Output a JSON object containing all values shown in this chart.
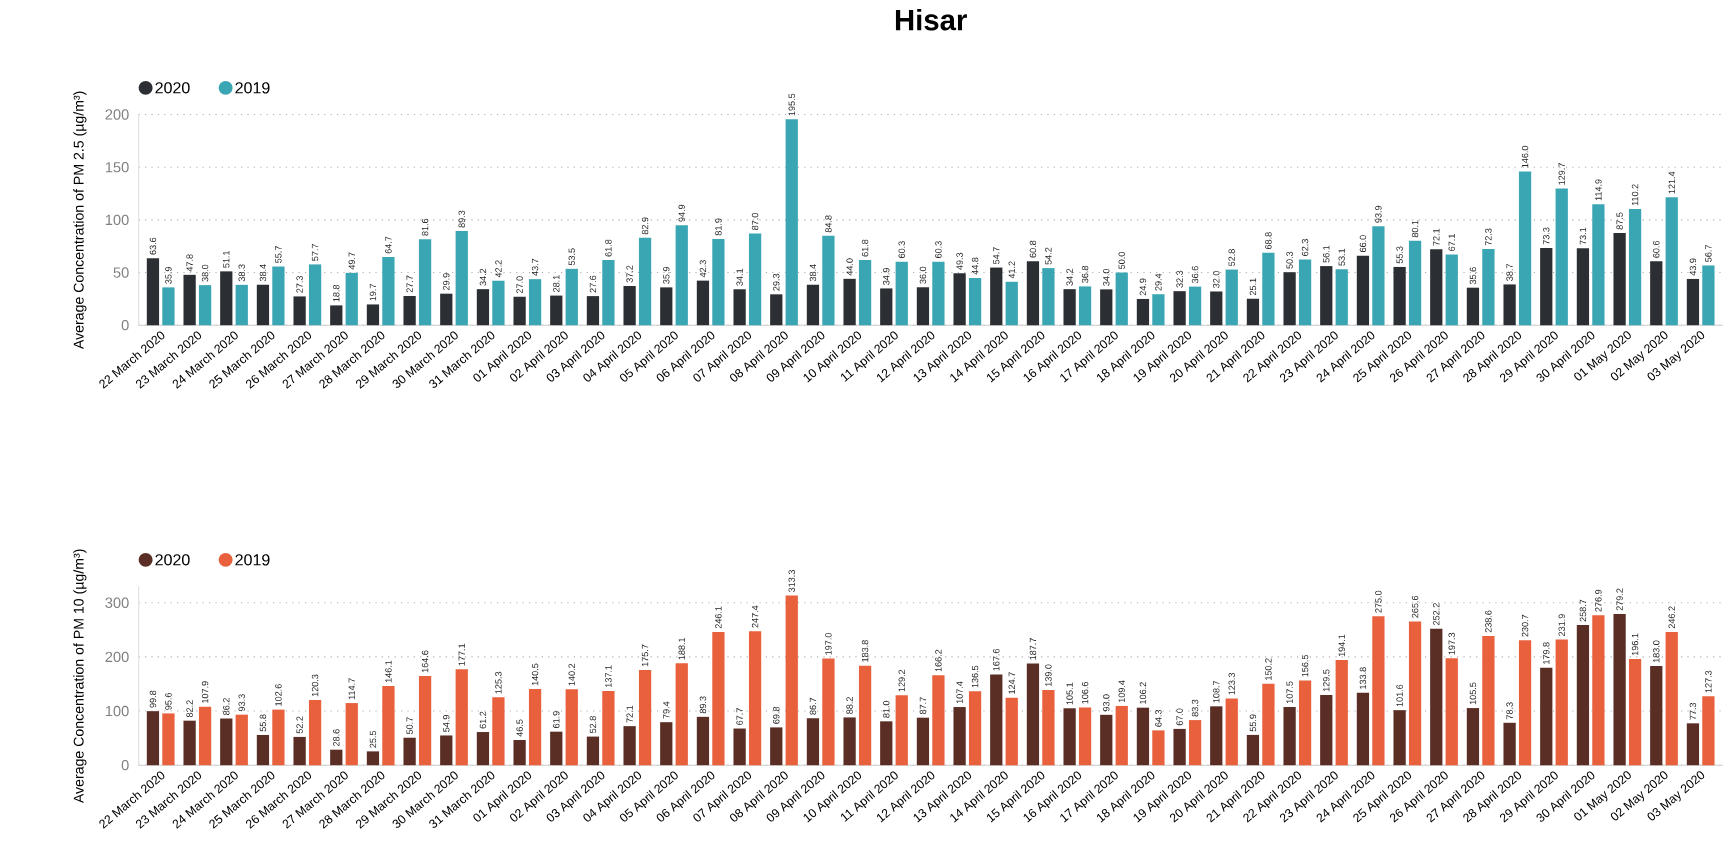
{
  "chart_data": [
    {
      "type": "bar",
      "title": "Hisar",
      "ylabel": "Average Concentration of PM 2.5 (µg/m³)",
      "categories": [
        "22 March 2020",
        "23 March 2020",
        "24 March 2020",
        "25 March 2020",
        "26 March 2020",
        "27 March 2020",
        "28 March 2020",
        "29 March 2020",
        "30 March 2020",
        "31 March 2020",
        "01 April 2020",
        "02 April 2020",
        "03 April 2020",
        "04 April 2020",
        "05 April 2020",
        "06 April 2020",
        "07 April 2020",
        "08 April 2020",
        "09 April 2020",
        "10 April 2020",
        "11 April 2020",
        "12 April 2020",
        "13 April 2020",
        "14 April 2020",
        "15 April 2020",
        "16 April 2020",
        "17 April 2020",
        "18 April 2020",
        "19 April 2020",
        "20 April 2020",
        "21 April 2020",
        "22 April 2020",
        "23 April 2020",
        "24 April 2020",
        "25 April 2020",
        "26 April 2020",
        "27 April 2020",
        "28 April 2020",
        "29 April 2020",
        "30 April 2020",
        "01 May 2020",
        "02 May 2020",
        "03 May 2020"
      ],
      "series": [
        {
          "name": "2020",
          "color": "#2b2f33",
          "values": [
            63.6,
            47.8,
            51.1,
            38.4,
            27.3,
            18.8,
            19.7,
            27.7,
            29.9,
            34.2,
            27.0,
            28.1,
            27.6,
            37.2,
            35.9,
            42.3,
            34.1,
            29.3,
            38.4,
            44.0,
            34.9,
            36.0,
            49.3,
            54.7,
            60.8,
            34.2,
            34.0,
            24.9,
            32.3,
            32.0,
            25.1,
            50.3,
            56.1,
            66.0,
            55.3,
            72.1,
            35.6,
            38.7,
            73.3,
            73.1,
            87.5,
            60.6,
            43.9
          ],
          "value_labels": [
            "63.6",
            "47.8",
            "51.1",
            "38.4",
            "27.3",
            "18.8",
            "19.7",
            "27.7",
            "29.9",
            "34.2",
            "27.0",
            "28.1",
            "27.6",
            "37.2",
            "35.9",
            "42.3",
            "34.1",
            "29.3",
            "38.4",
            "44.0",
            "34.9",
            "36.0",
            "49.3",
            "54.7",
            "60.8",
            "34.2",
            "34.0",
            "24.9",
            "32.3",
            "32.0",
            "25.1",
            "50.3",
            "56.1",
            "66.0",
            "55.3",
            "72.1",
            "35.6",
            "38.7",
            "73.3",
            "73.1",
            "87.5",
            "60.6",
            "43.9"
          ]
        },
        {
          "name": "2019",
          "color": "#3aa6b4",
          "values": [
            35.9,
            38.0,
            38.3,
            55.7,
            57.7,
            49.7,
            64.7,
            81.6,
            89.3,
            42.2,
            43.7,
            53.5,
            61.8,
            82.9,
            94.9,
            81.9,
            87.0,
            195.5,
            84.8,
            61.8,
            60.3,
            60.3,
            44.8,
            41.2,
            54.2,
            36.8,
            50.0,
            29.4,
            36.6,
            52.8,
            68.8,
            62.3,
            53.1,
            93.9,
            80.1,
            67.1,
            72.3,
            146.0,
            129.7,
            114.9,
            110.2,
            121.4,
            56.7
          ],
          "value_labels": [
            "35.9",
            "38.0",
            "38.3",
            "55.7",
            "57.7",
            "49.7",
            "64.7",
            "81.6",
            "89.3",
            "42.2",
            "43.7",
            "53.5",
            "61.8",
            "82.9",
            "94.9",
            "81.9",
            "87.0",
            "195.5",
            "84.8",
            "61.8",
            "60.3",
            "60.3",
            "44.8",
            "41.2",
            "54.2",
            "36.8",
            "50.0",
            "29.4",
            "36.6",
            "52.8",
            "68.8",
            "62.3",
            "53.1",
            "93.9",
            "80.1",
            "67.1",
            "72.3",
            "146.0",
            "129.7",
            "114.9",
            "110.2",
            "121.4",
            "56.7"
          ]
        }
      ],
      "ylim": [
        0,
        200
      ],
      "yticks": [
        0,
        50,
        100,
        150,
        200
      ],
      "grid": "y",
      "legend": "top left",
      "data_labels": true
    },
    {
      "type": "bar",
      "ylabel": "Average Concentration of PM 10 (µg/m³)",
      "categories": [
        "22 March 2020",
        "23 March 2020",
        "24 March 2020",
        "25 March 2020",
        "26 March 2020",
        "27 March 2020",
        "28 March 2020",
        "29 March 2020",
        "30 March 2020",
        "31 March 2020",
        "01 April 2020",
        "02 April 2020",
        "03 April 2020",
        "04 April 2020",
        "05 April 2020",
        "06 April 2020",
        "07 April 2020",
        "08 April 2020",
        "09 April 2020",
        "10 April 2020",
        "11 April 2020",
        "12 April 2020",
        "13 April 2020",
        "14 April 2020",
        "15 April 2020",
        "16 April 2020",
        "17 April 2020",
        "18 April 2020",
        "19 April 2020",
        "20 April 2020",
        "21 April 2020",
        "22 April 2020",
        "23 April 2020",
        "24 April 2020",
        "25 April 2020",
        "26 April 2020",
        "27 April 2020",
        "28 April 2020",
        "29 April 2020",
        "30 April 2020",
        "01 May 2020",
        "02 May 2020",
        "03 May 2020"
      ],
      "series": [
        {
          "name": "2020",
          "color": "#5a2e24",
          "values": [
            99.8,
            82.2,
            86.2,
            55.8,
            52.2,
            28.6,
            25.5,
            50.7,
            54.9,
            61.2,
            46.5,
            61.9,
            52.8,
            72.1,
            79.4,
            89.3,
            67.7,
            69.8,
            86.7,
            88.2,
            81.0,
            87.7,
            107.4,
            167.6,
            187.7,
            105.1,
            93.0,
            106.2,
            67.0,
            108.7,
            55.9,
            107.5,
            129.5,
            133.8,
            101.6,
            252.2,
            105.5,
            78.3,
            179.8,
            258.7,
            279.2,
            183.0,
            77.3
          ],
          "value_labels": [
            "99.8",
            "82.2",
            "86.2",
            "55.8",
            "52.2",
            "28.6",
            "25.5",
            "50.7",
            "54.9",
            "61.2",
            "46.5",
            "61.9",
            "52.8",
            "72.1",
            "79.4",
            "89.3",
            "67.7",
            "69.8",
            "86.7",
            "88.2",
            "81.0",
            "87.7",
            "107.4",
            "167.6",
            "187.7",
            "105.1",
            "93.0",
            "106.2",
            "67.0",
            "108.7",
            "55.9",
            "107.5",
            "129.5",
            "133.8",
            "101.6",
            "252.2",
            "105.5",
            "78.3",
            "179.8",
            "258.7",
            "279.2",
            "183.0",
            "77.3"
          ]
        },
        {
          "name": "2019",
          "color": "#e8603c",
          "values": [
            95.6,
            107.9,
            93.3,
            102.6,
            120.3,
            114.7,
            146.1,
            164.6,
            177.1,
            125.3,
            140.5,
            140.2,
            137.1,
            175.7,
            188.1,
            246.1,
            247.4,
            313.3,
            197.0,
            183.8,
            129.2,
            166.2,
            136.5,
            124.7,
            139.0,
            106.6,
            109.4,
            64.3,
            83.3,
            123.3,
            150.2,
            156.5,
            194.1,
            275.0,
            265.6,
            197.3,
            238.6,
            230.7,
            231.9,
            276.9,
            196.1,
            246.2,
            127.3
          ],
          "value_labels": [
            "95.6",
            "107.9",
            "93.3",
            "102.6",
            "120.3",
            "114.7",
            "146.1",
            "164.6",
            "177.1",
            "125.3",
            "140.5",
            "140.2",
            "137.1",
            "175.7",
            "188.1",
            "246.1",
            "247.4",
            "313.3",
            "197.0",
            "183.8",
            "129.2",
            "166.2",
            "136.5",
            "124.7",
            "139.0",
            "106.6",
            "109.4",
            "64.3",
            "83.3",
            "123.3",
            "150.2",
            "156.5",
            "194.1",
            "275.0",
            "265.6",
            "197.3",
            "238.6",
            "230.7",
            "231.9",
            "276.9",
            "196.1",
            "246.2",
            "127.3"
          ]
        }
      ],
      "ylim": [
        0,
        330
      ],
      "yticks": [
        0,
        100,
        200,
        300
      ],
      "grid": "y",
      "legend": "top left",
      "data_labels": true
    }
  ]
}
